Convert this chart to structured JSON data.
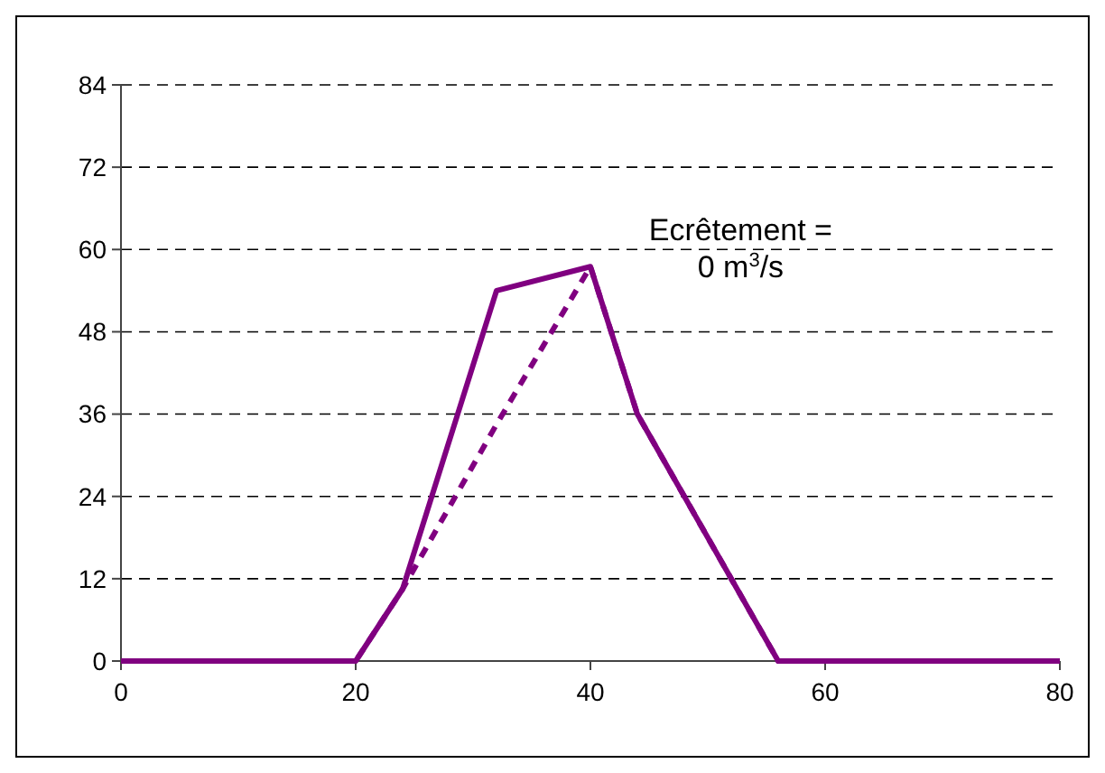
{
  "chart_data": {
    "type": "line",
    "xlim": [
      0,
      80
    ],
    "xticks": [
      0,
      20,
      40,
      60,
      80
    ],
    "ylim": [
      0,
      84
    ],
    "yticks": [
      0,
      12,
      24,
      36,
      48,
      60,
      72,
      84
    ],
    "grid": "y",
    "series": [
      {
        "color": "#800080",
        "line_style": "solid",
        "x": [
          0,
          20,
          24,
          32,
          40,
          44,
          56,
          80
        ],
        "values": [
          0,
          0,
          10.5,
          54,
          57.5,
          36,
          0,
          0
        ]
      },
      {
        "color": "#800080",
        "line_style": "dashed",
        "x": [
          0,
          20,
          24,
          32,
          40,
          44,
          56,
          80
        ],
        "values": [
          0,
          0,
          10.5,
          34.5,
          57.5,
          36,
          0,
          0
        ]
      }
    ],
    "annotations": [
      "Ecrêtement =\n0 m$^{3}$/s"
    ]
  }
}
